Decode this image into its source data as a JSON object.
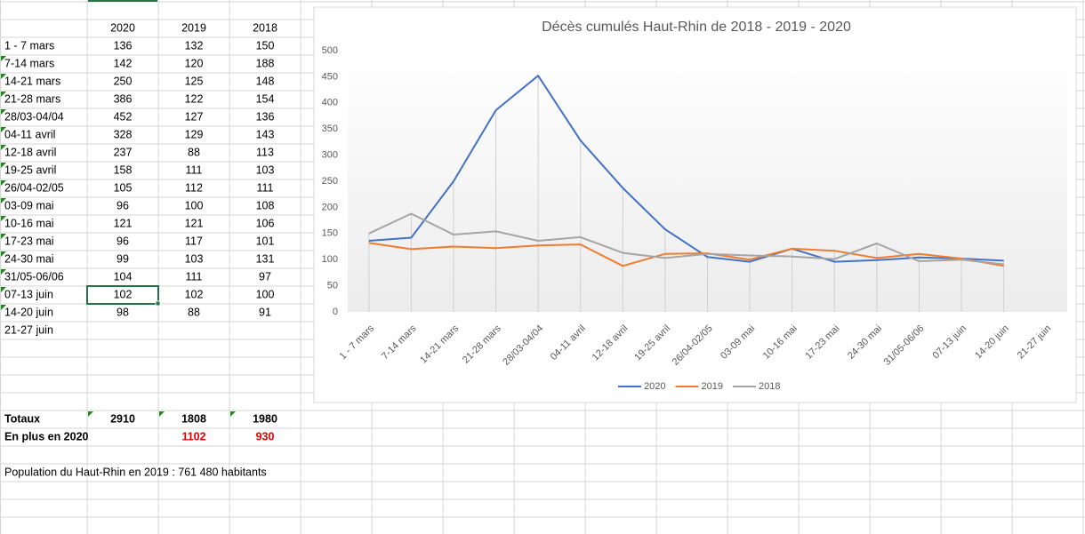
{
  "sheet": {
    "headers": [
      "2020",
      "2019",
      "2018"
    ],
    "rows": [
      {
        "label": "1 - 7 mars",
        "values": [
          136,
          132,
          150
        ]
      },
      {
        "label": "7-14 mars",
        "values": [
          142,
          120,
          188
        ]
      },
      {
        "label": "14-21 mars",
        "values": [
          250,
          125,
          148
        ]
      },
      {
        "label": "21-28 mars",
        "values": [
          386,
          122,
          154
        ]
      },
      {
        "label": "28/03-04/04",
        "values": [
          452,
          127,
          136
        ]
      },
      {
        "label": "04-11 avril",
        "values": [
          328,
          129,
          143
        ]
      },
      {
        "label": "12-18 avril",
        "values": [
          237,
          88,
          113
        ]
      },
      {
        "label": "19-25 avril",
        "values": [
          158,
          111,
          103
        ]
      },
      {
        "label": "26/04-02/05",
        "values": [
          105,
          112,
          111
        ]
      },
      {
        "label": "03-09 mai",
        "values": [
          96,
          100,
          108
        ]
      },
      {
        "label": "10-16 mai",
        "values": [
          121,
          121,
          106
        ]
      },
      {
        "label": "17-23 mai",
        "values": [
          96,
          117,
          101
        ]
      },
      {
        "label": "24-30 mai",
        "values": [
          99,
          103,
          131
        ]
      },
      {
        "label": "31/05-06/06",
        "values": [
          104,
          111,
          97
        ]
      },
      {
        "label": "07-13 juin",
        "values": [
          102,
          102,
          100
        ]
      },
      {
        "label": "14-20 juin",
        "values": [
          98,
          88,
          91
        ]
      },
      {
        "label": "21-27 juin",
        "values": []
      }
    ],
    "totals": {
      "label": "Totaux",
      "values": [
        2910,
        1808,
        1980
      ]
    },
    "extra": {
      "label": "En plus en 2020",
      "values": [
        1102,
        930
      ]
    },
    "note": "Population du Haut-Rhin en 2019 : 761 480 habitants"
  },
  "chart_data": {
    "type": "line",
    "title": "Décès cumulés Haut-Rhin de 2018 - 2019 - 2020",
    "categories": [
      "1 - 7 mars",
      "7-14 mars",
      "14-21 mars",
      "21-28 mars",
      "28/03-04/04",
      "04-11 avril",
      "12-18 avril",
      "19-25 avril",
      "26/04-02/05",
      "03-09 mai",
      "10-16 mai",
      "17-23 mai",
      "24-30 mai",
      "31/05-06/06",
      "07-13 juin",
      "14-20 juin",
      "21-27 juin"
    ],
    "series": [
      {
        "name": "2020",
        "color": "#4472c4",
        "values": [
          136,
          142,
          250,
          386,
          452,
          328,
          237,
          158,
          105,
          96,
          121,
          96,
          99,
          104,
          102,
          98,
          null
        ]
      },
      {
        "name": "2019",
        "color": "#ed7d31",
        "values": [
          132,
          120,
          125,
          122,
          127,
          129,
          88,
          111,
          112,
          100,
          121,
          117,
          103,
          111,
          102,
          88,
          null
        ]
      },
      {
        "name": "2018",
        "color": "#a5a5a5",
        "values": [
          150,
          188,
          148,
          154,
          136,
          143,
          113,
          103,
          111,
          108,
          106,
          101,
          131,
          97,
          100,
          91,
          null
        ]
      }
    ],
    "ylim": [
      0,
      500
    ],
    "yticks": [
      0,
      50,
      100,
      150,
      200,
      250,
      300,
      350,
      400,
      450,
      500
    ],
    "grid": false,
    "legend": "bottom"
  }
}
